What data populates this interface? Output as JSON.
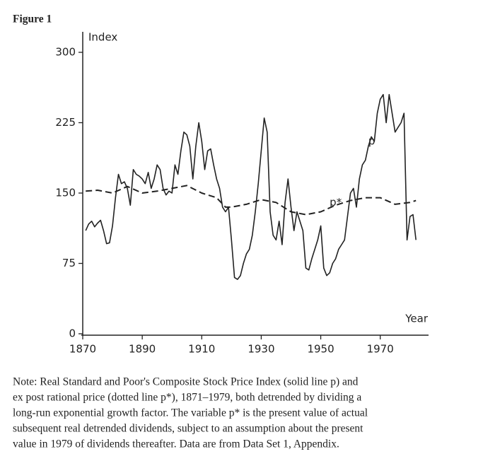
{
  "figure_label": "Figure 1",
  "chart_data": {
    "type": "line",
    "y_label": "Index",
    "x_label": "Year",
    "xlim": [
      1870,
      1986
    ],
    "xticks": [
      1870,
      1890,
      1910,
      1930,
      1950,
      1970
    ],
    "ylim": [
      0,
      300
    ],
    "yticks": [
      0,
      75,
      150,
      225,
      300
    ],
    "series": [
      {
        "name": "p",
        "color": "#222",
        "dash": false,
        "x": [
          1871,
          1872,
          1873,
          1874,
          1875,
          1876,
          1877,
          1878,
          1879,
          1880,
          1881,
          1882,
          1883,
          1884,
          1885,
          1886,
          1887,
          1888,
          1889,
          1890,
          1891,
          1892,
          1893,
          1894,
          1895,
          1896,
          1897,
          1898,
          1899,
          1900,
          1901,
          1902,
          1903,
          1904,
          1905,
          1906,
          1907,
          1908,
          1909,
          1910,
          1911,
          1912,
          1913,
          1914,
          1915,
          1916,
          1917,
          1918,
          1919,
          1920,
          1921,
          1922,
          1923,
          1924,
          1925,
          1926,
          1927,
          1928,
          1929,
          1930,
          1931,
          1932,
          1933,
          1934,
          1935,
          1936,
          1937,
          1938,
          1939,
          1940,
          1941,
          1942,
          1943,
          1944,
          1945,
          1946,
          1947,
          1948,
          1949,
          1950,
          1951,
          1952,
          1953,
          1954,
          1955,
          1956,
          1957,
          1958,
          1959,
          1960,
          1961,
          1962,
          1963,
          1964,
          1965,
          1966,
          1967,
          1968,
          1969,
          1970,
          1971,
          1972,
          1973,
          1974,
          1975,
          1976,
          1977,
          1978,
          1979,
          1980,
          1981,
          1982
        ],
        "values": [
          110,
          117,
          120,
          114,
          118,
          121,
          110,
          96,
          97,
          115,
          145,
          170,
          160,
          162,
          155,
          137,
          175,
          170,
          168,
          165,
          160,
          172,
          155,
          165,
          180,
          175,
          155,
          148,
          152,
          150,
          180,
          170,
          195,
          215,
          212,
          200,
          165,
          200,
          225,
          205,
          175,
          195,
          197,
          180,
          165,
          155,
          135,
          130,
          135,
          100,
          60,
          58,
          62,
          75,
          85,
          90,
          105,
          130,
          160,
          195,
          230,
          215,
          130,
          105,
          100,
          120,
          95,
          140,
          165,
          135,
          110,
          130,
          120,
          110,
          70,
          68,
          80,
          90,
          100,
          115,
          70,
          62,
          65,
          75,
          80,
          90,
          95,
          100,
          125,
          150,
          155,
          135,
          165,
          180,
          185,
          200,
          210,
          205,
          235,
          250,
          255,
          225,
          255,
          235,
          215,
          220,
          225,
          235,
          100,
          125,
          127,
          100
        ]
      },
      {
        "name": "p*",
        "color": "#222",
        "dash": true,
        "x": [
          1871,
          1875,
          1880,
          1885,
          1890,
          1895,
          1900,
          1905,
          1910,
          1915,
          1918,
          1920,
          1925,
          1930,
          1935,
          1940,
          1945,
          1950,
          1955,
          1960,
          1965,
          1970,
          1975,
          1980,
          1982
        ],
        "values": [
          152,
          153,
          150,
          157,
          150,
          152,
          155,
          158,
          150,
          145,
          135,
          135,
          138,
          143,
          140,
          130,
          127,
          130,
          137,
          142,
          145,
          145,
          138,
          140,
          142
        ]
      }
    ],
    "annotations": [
      {
        "text": "p",
        "x": 1966,
        "y": 205
      },
      {
        "text": "p*",
        "x": 1953,
        "y": 140
      }
    ]
  },
  "note_lines": [
    "Note: Real Standard and Poor's Composite Stock Price Index (solid line p) and",
    "ex post rational price (dotted line p*), 1871–1979, both detrended by dividing a",
    "long-run exponential growth factor. The variable p* is the present value of actual",
    "subsequent real detrended dividends, subject to an assumption about the present",
    "value in 1979 of dividends thereafter. Data are from Data Set 1, Appendix."
  ]
}
